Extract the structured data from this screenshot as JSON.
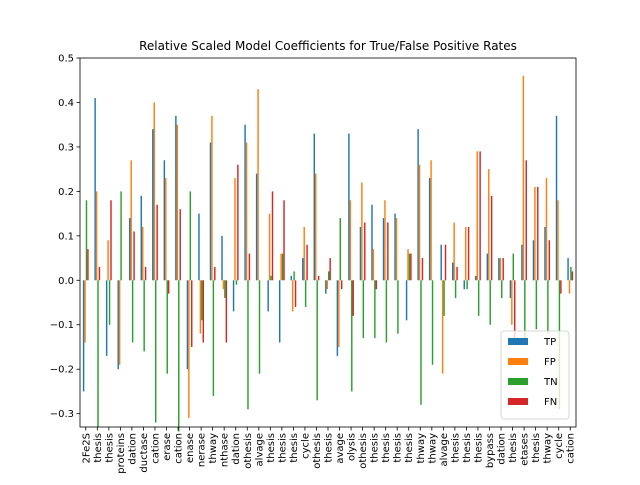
{
  "chart_data": {
    "type": "bar",
    "title": "Relative Scaled Model Coefficients for True/False Positive Rates",
    "xlabel": "",
    "ylabel": "",
    "ylim": [
      -0.33,
      0.5
    ],
    "yticks": [
      "−0.3",
      "−0.2",
      "−0.1",
      "0.0",
      "0.1",
      "0.2",
      "0.3",
      "0.4",
      "0.5"
    ],
    "ytick_values": [
      -0.3,
      -0.2,
      -0.1,
      0.0,
      0.1,
      0.2,
      0.3,
      0.4,
      0.5
    ],
    "legend_position": "lower right",
    "categories": [
      "2Fe2S",
      "thesis",
      "thesis",
      "proteins",
      "dation",
      "ductase",
      "cation",
      "erase",
      "cation",
      "enase",
      "nerase",
      "thway",
      "nthase",
      "dation",
      "othesis",
      "alvage",
      "thesis",
      "thesis",
      "thesis",
      "cycle",
      "othesis",
      "thesis",
      "avage",
      "olysis",
      "othesis",
      "thesis",
      "thesis",
      "thesis",
      "thesis",
      "thway",
      "thway",
      "alvage",
      "thesis",
      "thesis",
      "thesis",
      "bypass",
      "dation",
      "thesis",
      "etases",
      "thesis",
      "thway",
      "cycle",
      "cation"
    ],
    "series": [
      {
        "name": "TP",
        "color": "#1f77b4",
        "values": [
          -0.25,
          0.41,
          -0.17,
          -0.2,
          0.14,
          0.19,
          0.34,
          0.27,
          0.37,
          -0.2,
          0.15,
          0.31,
          0.1,
          -0.07,
          0.35,
          0.24,
          -0.07,
          -0.14,
          0.01,
          0.05,
          0.33,
          -0.03,
          -0.17,
          0.33,
          0.12,
          0.17,
          0.14,
          0.15,
          -0.09,
          0.34,
          0.23,
          0.08,
          0.04,
          -0.02,
          0.01,
          0.06,
          0.05,
          -0.04,
          0.08,
          0.09,
          0.12,
          0.37,
          0.05
        ]
      },
      {
        "name": "FP",
        "color": "#ff7f0e",
        "values": [
          -0.14,
          0.2,
          0.09,
          -0.19,
          0.27,
          0.12,
          0.4,
          0.23,
          0.35,
          -0.31,
          -0.12,
          0.37,
          -0.02,
          0.23,
          0.31,
          0.43,
          0.15,
          0.06,
          -0.07,
          0.12,
          0.24,
          -0.02,
          -0.15,
          0.18,
          0.22,
          0.07,
          0.18,
          0.14,
          0.07,
          0.26,
          0.27,
          -0.21,
          0.13,
          0.12,
          0.29,
          0.25,
          0.05,
          -0.1,
          0.46,
          0.21,
          0.23,
          0.18,
          -0.03
        ]
      },
      {
        "name": "TN",
        "color": "#2ca02c",
        "values": [
          0.18,
          -0.33,
          -0.1,
          0.2,
          -0.14,
          -0.16,
          -0.32,
          -0.21,
          -0.34,
          0.2,
          -0.09,
          -0.26,
          -0.04,
          -0.01,
          -0.29,
          -0.21,
          0.01,
          0.06,
          0.02,
          -0.06,
          -0.27,
          0.02,
          0.14,
          -0.25,
          -0.13,
          -0.13,
          -0.14,
          -0.12,
          0.06,
          -0.28,
          -0.19,
          -0.08,
          -0.04,
          -0.02,
          -0.08,
          -0.1,
          -0.04,
          0.06,
          -0.14,
          -0.11,
          -0.12,
          -0.29,
          0.03
        ]
      },
      {
        "name": "FN",
        "color": "#d62728",
        "values": [
          0.07,
          0.03,
          0.18,
          0.0,
          0.11,
          0.03,
          0.17,
          -0.03,
          0.16,
          -0.15,
          -0.14,
          0.03,
          -0.14,
          0.26,
          0.06,
          0.0,
          0.2,
          0.18,
          -0.06,
          0.08,
          0.01,
          0.05,
          -0.02,
          -0.08,
          0.13,
          -0.02,
          0.13,
          0.0,
          0.06,
          0.05,
          0.0,
          0.08,
          0.03,
          0.12,
          0.29,
          0.19,
          0.05,
          -0.14,
          0.27,
          0.21,
          0.09,
          -0.03,
          0.02
        ]
      }
    ]
  }
}
